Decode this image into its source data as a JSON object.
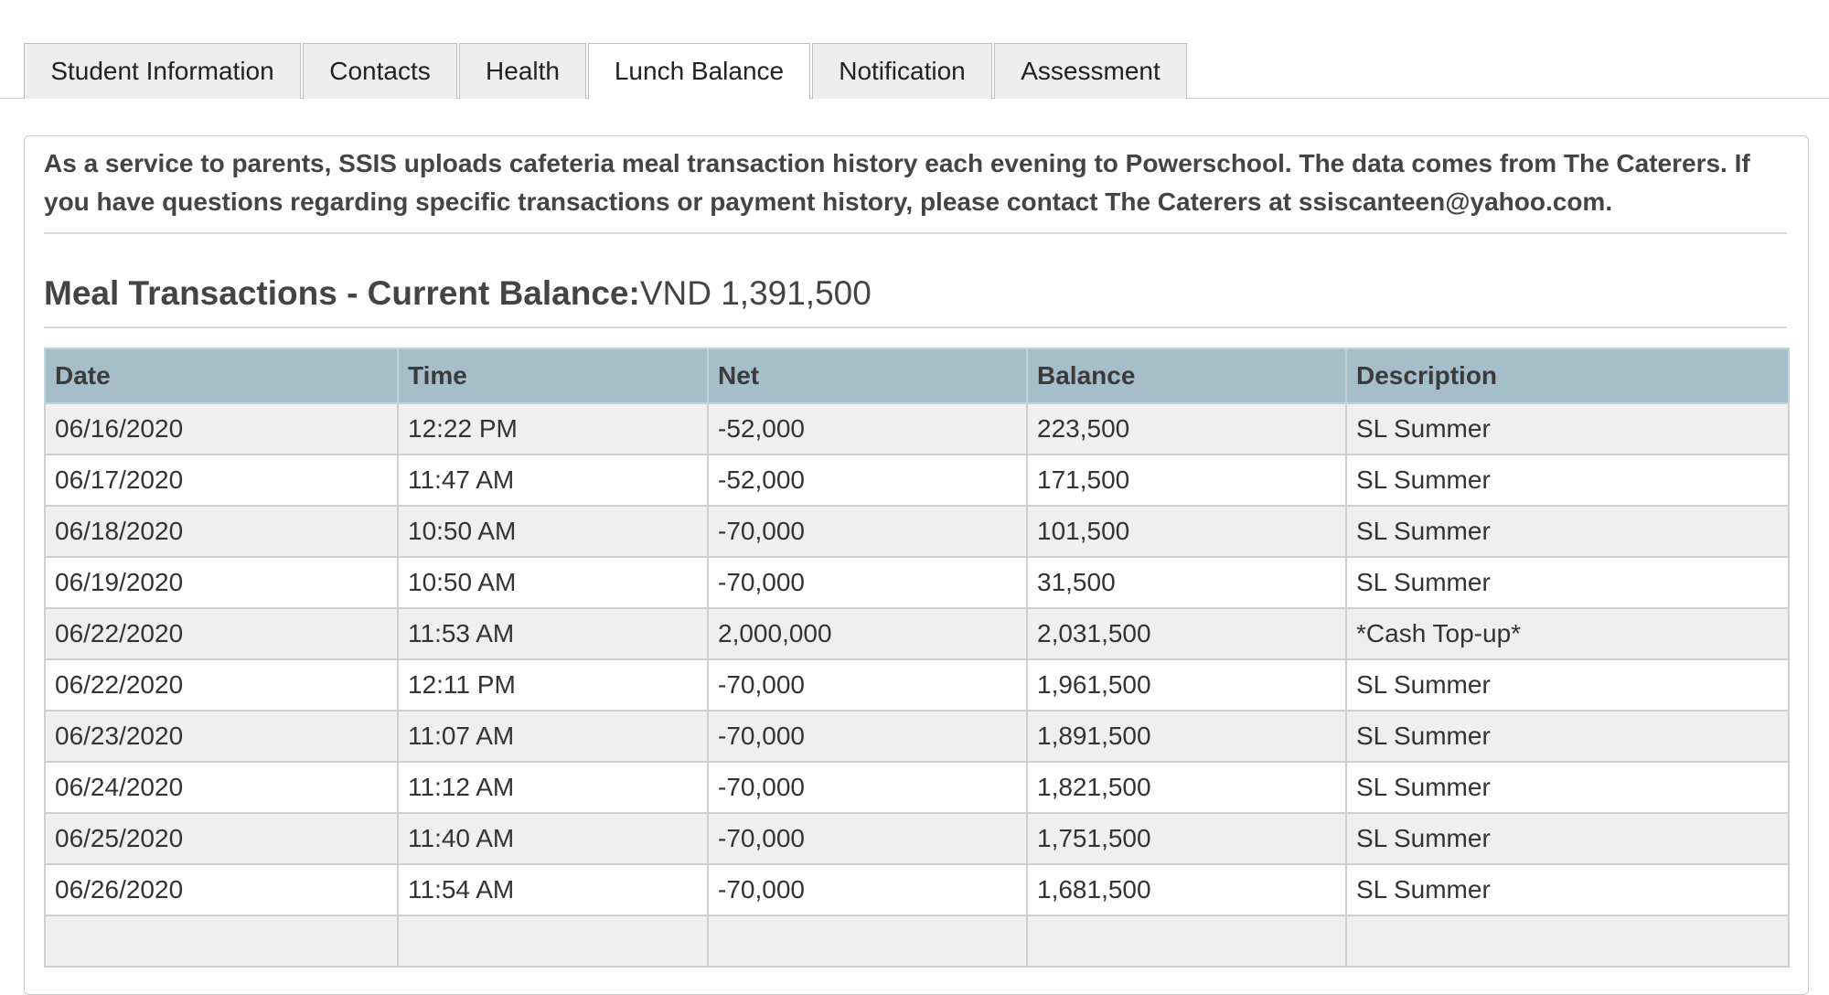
{
  "tabs": [
    {
      "label": "Student Information",
      "active": false
    },
    {
      "label": "Contacts",
      "active": false
    },
    {
      "label": "Health",
      "active": false
    },
    {
      "label": "Lunch Balance",
      "active": true
    },
    {
      "label": "Notification",
      "active": false
    },
    {
      "label": "Assessment",
      "active": false
    }
  ],
  "notice": "As a service to parents, SSIS uploads cafeteria meal transaction history each evening to Powerschool. The data comes from The Caterers. If you have questions regarding specific transactions or payment history, please contact The Caterers at ssiscanteen@yahoo.com.",
  "heading": {
    "label": "Meal Transactions - Current Balance:",
    "value": "VND 1,391,500"
  },
  "table": {
    "columns": [
      "Date",
      "Time",
      "Net",
      "Balance",
      "Description"
    ],
    "rows": [
      [
        "06/16/2020",
        "12:22 PM",
        "-52,000",
        "223,500",
        "SL Summer"
      ],
      [
        "06/17/2020",
        "11:47 AM",
        "-52,000",
        "171,500",
        "SL Summer"
      ],
      [
        "06/18/2020",
        "10:50 AM",
        "-70,000",
        "101,500",
        "SL Summer"
      ],
      [
        "06/19/2020",
        "10:50 AM",
        "-70,000",
        "31,500",
        "SL Summer"
      ],
      [
        "06/22/2020",
        "11:53 AM",
        "2,000,000",
        "2,031,500",
        "*Cash Top-up*"
      ],
      [
        "06/22/2020",
        "12:11 PM",
        "-70,000",
        "1,961,500",
        "SL Summer"
      ],
      [
        "06/23/2020",
        "11:07 AM",
        "-70,000",
        "1,891,500",
        "SL Summer"
      ],
      [
        "06/24/2020",
        "11:12 AM",
        "-70,000",
        "1,821,500",
        "SL Summer"
      ],
      [
        "06/25/2020",
        "11:40 AM",
        "-70,000",
        "1,751,500",
        "SL Summer"
      ],
      [
        "06/26/2020",
        "11:54 AM",
        "-70,000",
        "1,681,500",
        "SL Summer"
      ],
      [
        "",
        "",
        "",
        "",
        ""
      ]
    ]
  }
}
